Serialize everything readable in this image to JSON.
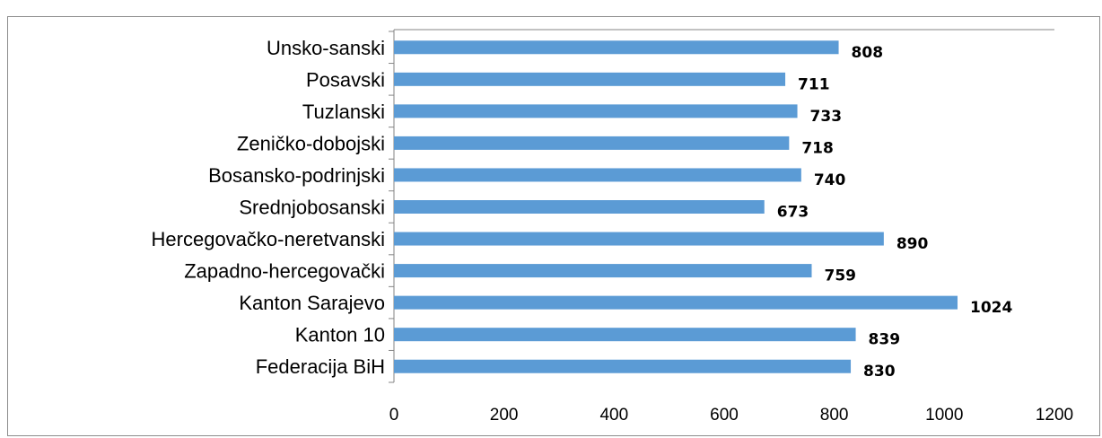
{
  "chart_data": {
    "type": "bar",
    "orientation": "horizontal",
    "categories": [
      "Unsko-sanski",
      "Posavski",
      "Tuzlanski",
      "Zeničko-dobojski",
      "Bosansko-podrinjski",
      "Srednjobosanski",
      "Hercegovačko-neretvanski",
      "Zapadno-hercegovački",
      "Kanton Sarajevo",
      "Kanton 10",
      "Federacija BiH"
    ],
    "values": [
      808,
      711,
      733,
      718,
      740,
      673,
      890,
      759,
      1024,
      839,
      830
    ],
    "xlim": [
      0,
      1200
    ],
    "xticks": [
      0,
      200,
      400,
      600,
      800,
      1000,
      1200
    ],
    "title": "",
    "xlabel": "",
    "ylabel": "",
    "grid": false,
    "legend": "none",
    "bar_color": "#5b9bd5",
    "axis_color": "#868686"
  }
}
